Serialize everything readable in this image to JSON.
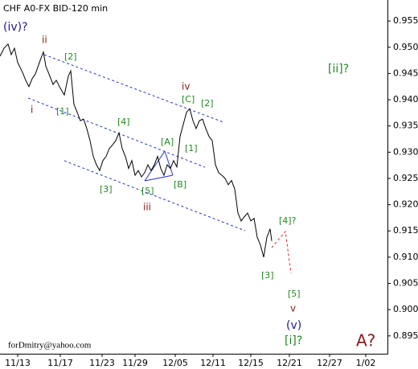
{
  "chart_data": {
    "type": "line",
    "title": "CHF A0-FX BID-120 min",
    "x": [
      0,
      5,
      10,
      14,
      18,
      22,
      28,
      32,
      36,
      40,
      44,
      50,
      54,
      57,
      62,
      66,
      70,
      75,
      80,
      85,
      88,
      92,
      96,
      100,
      104,
      108,
      112,
      116,
      120,
      124,
      128,
      132,
      136,
      140,
      144,
      148,
      152,
      156,
      160,
      164,
      168,
      172,
      176,
      180,
      184,
      188,
      192,
      196,
      200,
      204,
      208,
      212,
      216,
      220,
      224,
      228,
      232,
      236,
      240,
      244,
      248,
      252,
      256,
      260,
      264,
      268,
      272,
      276,
      280,
      284,
      288,
      292,
      296,
      300,
      304,
      308,
      312,
      316,
      320,
      324,
      328,
      332,
      336,
      338
    ],
    "series": [
      {
        "name": "CHF",
        "color": "#000000",
        "values": [
          0.9483,
          0.9498,
          0.9506,
          0.9486,
          0.9498,
          0.9471,
          0.9452,
          0.9437,
          0.9425,
          0.944,
          0.9449,
          0.9475,
          0.9491,
          0.9464,
          0.9445,
          0.9429,
          0.9437,
          0.9422,
          0.9409,
          0.9445,
          0.9455,
          0.9391,
          0.9376,
          0.936,
          0.9363,
          0.9345,
          0.9322,
          0.9292,
          0.9276,
          0.9265,
          0.9284,
          0.9292,
          0.9307,
          0.9314,
          0.9322,
          0.9337,
          0.9307,
          0.9292,
          0.9269,
          0.9284,
          0.9256,
          0.9265,
          0.9253,
          0.9261,
          0.9276,
          0.9265,
          0.9276,
          0.9292,
          0.9269,
          0.9256,
          0.9276,
          0.9269,
          0.9284,
          0.9272,
          0.933,
          0.9353,
          0.9376,
          0.9383,
          0.936,
          0.9345,
          0.936,
          0.9363,
          0.9345,
          0.933,
          0.9322,
          0.9276,
          0.9261,
          0.9256,
          0.925,
          0.9238,
          0.9246,
          0.923,
          0.9184,
          0.9169,
          0.9177,
          0.9184,
          0.9169,
          0.9174,
          0.9138,
          0.9123,
          0.91,
          0.9138,
          0.9154,
          0.9131
        ]
      }
    ],
    "xlim": [
      0,
      482
    ],
    "xticks": [
      {
        "value": 22,
        "label": "11/13"
      },
      {
        "value": 75,
        "label": "11/17"
      },
      {
        "value": 127,
        "label": "11/23"
      },
      {
        "value": 168,
        "label": "11/29"
      },
      {
        "value": 218,
        "label": "12/05"
      },
      {
        "value": 265,
        "label": "12/11"
      },
      {
        "value": 312,
        "label": "12/15"
      },
      {
        "value": 360,
        "label": "12/21"
      },
      {
        "value": 410,
        "label": "12/27"
      },
      {
        "value": 455,
        "label": "1/02"
      }
    ],
    "ylim": [
      0.8916,
      0.959
    ],
    "yticks": [
      {
        "value": 0.955,
        "label": "0.9550"
      },
      {
        "value": 0.95,
        "label": "0.9500"
      },
      {
        "value": 0.945,
        "label": "0.9450"
      },
      {
        "value": 0.94,
        "label": "0.9400"
      },
      {
        "value": 0.935,
        "label": "0.9350"
      },
      {
        "value": 0.93,
        "label": "0.9300"
      },
      {
        "value": 0.925,
        "label": "0.9250"
      },
      {
        "value": 0.92,
        "label": "0.9200"
      },
      {
        "value": 0.915,
        "label": "0.9150"
      },
      {
        "value": 0.91,
        "label": "0.9100"
      },
      {
        "value": 0.905,
        "label": "0.9050"
      },
      {
        "value": 0.9,
        "label": "0.9000"
      },
      {
        "value": 0.895,
        "label": "0.8950"
      }
    ],
    "annotations": [
      "(iv)?",
      "ii",
      "[2]",
      "i",
      "[1]",
      "[4]",
      "[A]",
      "[1]",
      "iv",
      "[C]",
      "[2]",
      "[3]",
      "[5]",
      "[B]",
      "iii",
      "[4]?",
      "[3]",
      "[5]",
      "v",
      "(v)",
      "[i]?",
      "[ii]?",
      "A?",
      "forDmitry@yahoo.com"
    ]
  }
}
